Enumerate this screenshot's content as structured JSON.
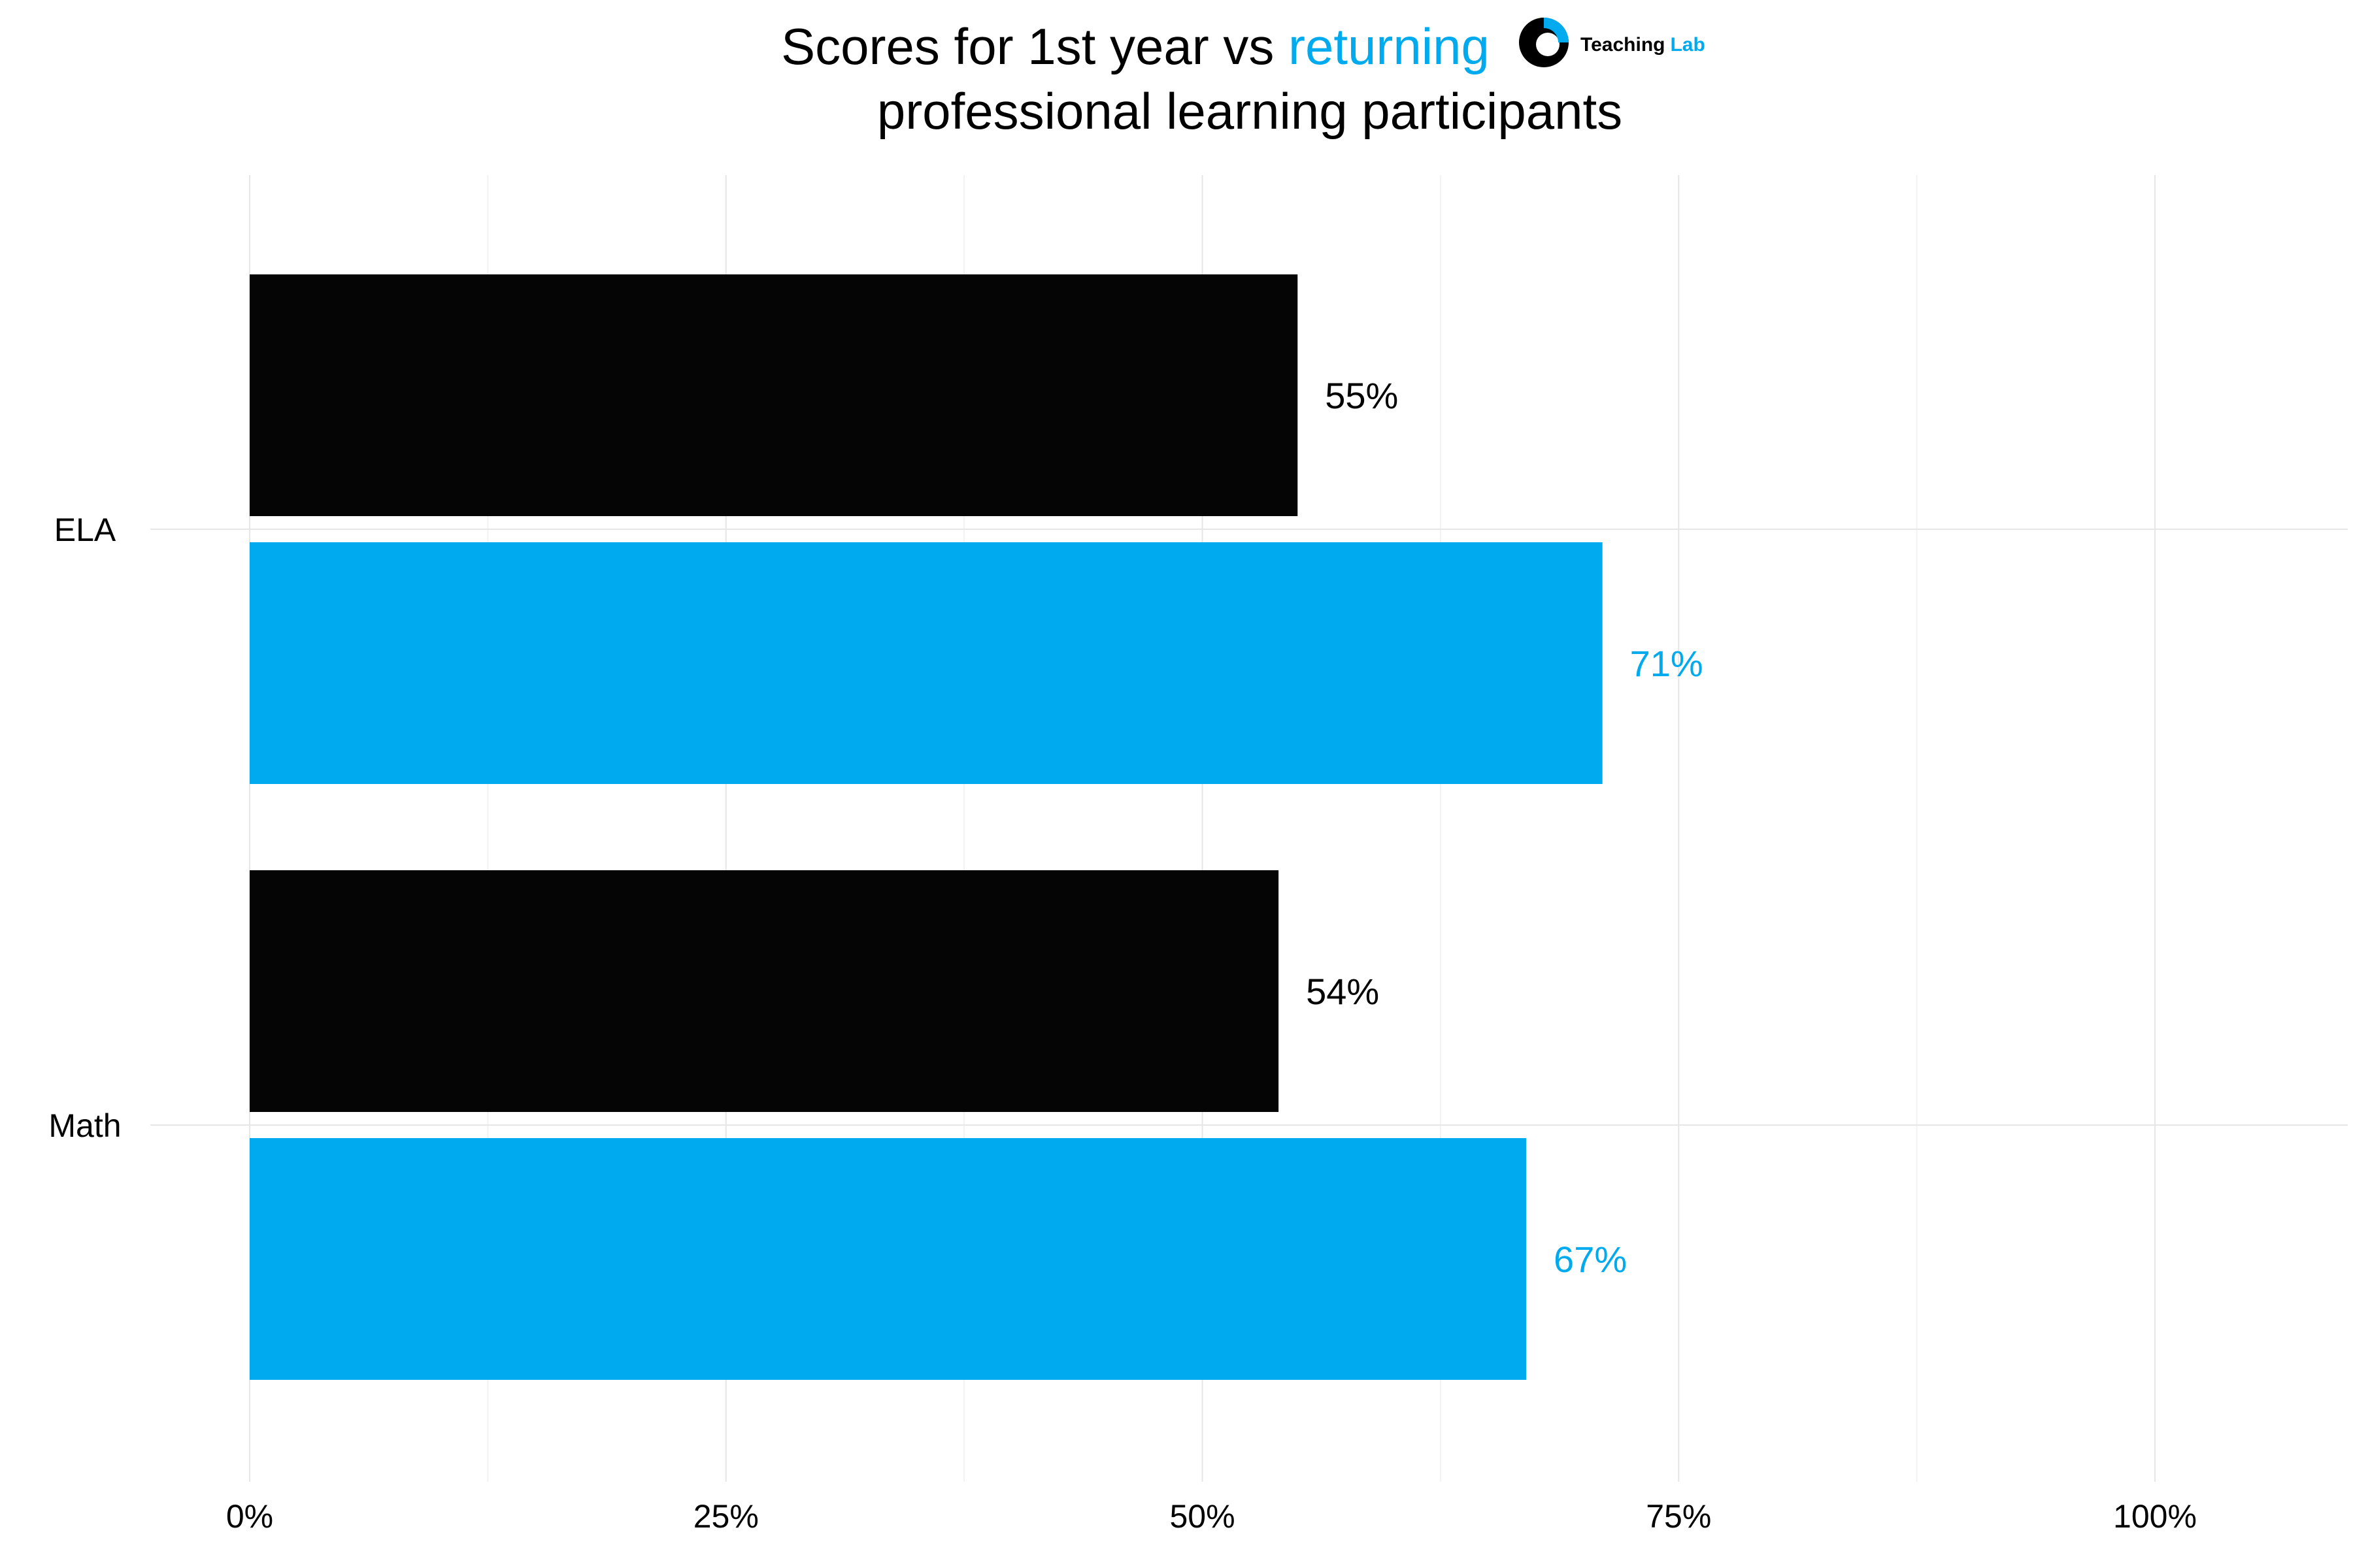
{
  "chart_data": {
    "type": "bar",
    "orientation": "horizontal",
    "title": {
      "prefix": "Scores for 1st year vs ",
      "accent": "returning",
      "line2": "professional learning participants"
    },
    "categories": [
      "ELA",
      "Math"
    ],
    "series": [
      {
        "key": "first_year",
        "color": "#050505",
        "label_color": "#000000",
        "values": [
          55,
          54
        ]
      },
      {
        "key": "returning",
        "color": "#00aaee",
        "label_color": "#00aaee",
        "values": [
          71,
          67
        ]
      }
    ],
    "data_labels": [
      [
        "55%",
        "54%"
      ],
      [
        "71%",
        "67%"
      ]
    ],
    "xlim": [
      0,
      110
    ],
    "x_ticks": [
      0,
      25,
      50,
      75,
      100
    ],
    "x_tick_labels": [
      "0%",
      "25%",
      "50%",
      "75%",
      "100%"
    ],
    "minor_grid": [
      12.5,
      37.5,
      62.5,
      87.5
    ],
    "grid": true,
    "legend": "none"
  },
  "logo": {
    "name": "teaching-lab-logo-icon",
    "word1": "Teaching",
    "word2": "Lab",
    "color_dark": "#000000",
    "color_accent": "#00aaee"
  }
}
